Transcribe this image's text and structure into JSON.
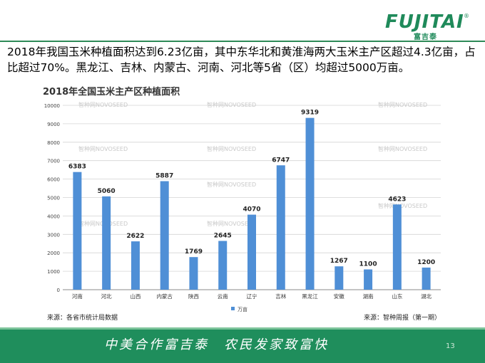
{
  "logo": {
    "brand": "FUJITAI",
    "sub": "富吉泰",
    "reg": "®"
  },
  "headline": "2018年我国玉米种植面积达到6.23亿亩，其中东华北和黄淮海两大玉米主产区超过4.3亿亩，占比超过70%。黑龙江、吉林、内蒙古、河南、河北等5省（区）均超过5000万亩。",
  "footer": {
    "slogan": "中美合作富吉泰　农民发家致富快",
    "page": "13"
  },
  "colors": {
    "bar": "#4f8fd6",
    "accent": "#1f8e5c"
  },
  "chart_data": {
    "type": "bar",
    "title": "2018年全国玉米主产区种植面积",
    "categories": [
      "河南",
      "河北",
      "山西",
      "内蒙古",
      "陕西",
      "云南",
      "辽宁",
      "吉林",
      "黑龙江",
      "安徽",
      "湖南",
      "山东",
      "湖北"
    ],
    "values": [
      6383,
      5060,
      2622,
      5887,
      1769,
      2645,
      4070,
      6747,
      9319,
      1267,
      1100,
      4623,
      1200
    ],
    "series": [
      {
        "name": "万亩",
        "values": [
          6383,
          5060,
          2622,
          5887,
          1769,
          2645,
          4070,
          6747,
          9319,
          1267,
          1100,
          4623,
          1200
        ]
      }
    ],
    "ylim": [
      0,
      10000
    ],
    "yticks": [
      0,
      1000,
      2000,
      3000,
      4000,
      5000,
      6000,
      7000,
      8000,
      9000,
      10000
    ],
    "grid": true,
    "legend": "bottom",
    "legend_label": "万亩",
    "watermark": "智种网NOVOSEED",
    "source_left": "来源：各省市统计局数据",
    "source_right": "来源：智种周报（第一期）"
  }
}
